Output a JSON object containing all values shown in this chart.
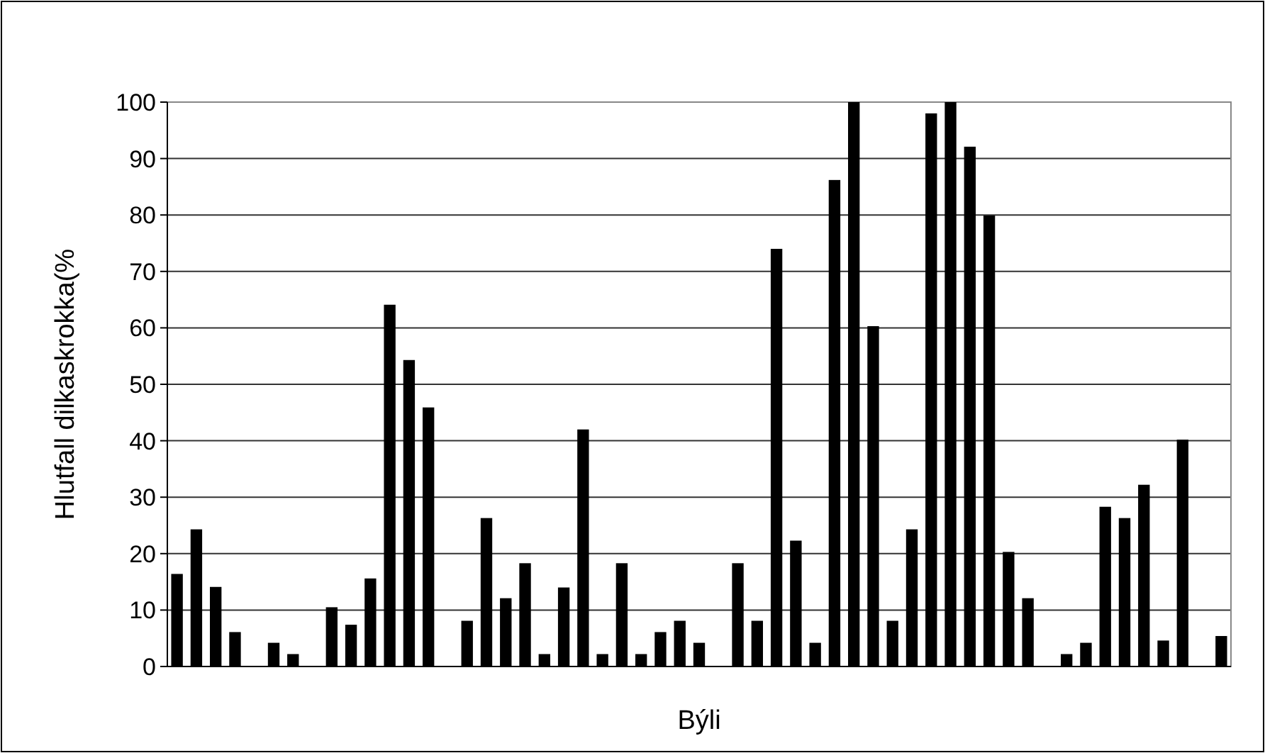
{
  "chart_data": {
    "type": "bar",
    "xlabel": "Býli",
    "ylabel": "Hlutfall dilkaskrokka(%",
    "categories": [
      null,
      null,
      null,
      null,
      null,
      null,
      null,
      null,
      null,
      null,
      null,
      null,
      null,
      null,
      null,
      null,
      null,
      null,
      null,
      null,
      null,
      null,
      null,
      null,
      null,
      null,
      null,
      null,
      null,
      null,
      null,
      null,
      null,
      null,
      null,
      null,
      null,
      null,
      null,
      null,
      null,
      null,
      null,
      null,
      null,
      null,
      null,
      null,
      null,
      null,
      null,
      null,
      null,
      null,
      null
    ],
    "values": [
      16.4,
      24.3,
      14.1,
      6.1,
      null,
      4.2,
      2.2,
      null,
      10.5,
      7.4,
      15.6,
      64.1,
      54.3,
      45.9,
      null,
      8.1,
      26.3,
      12.1,
      18.3,
      2.2,
      14,
      42,
      2.2,
      18.3,
      2.2,
      6.1,
      8.1,
      4.2,
      null,
      18.3,
      8.1,
      74,
      22.3,
      4.2,
      86.2,
      100,
      60.3,
      8.1,
      24.3,
      98,
      100,
      92.1,
      79.9,
      20.3,
      12.1,
      null,
      2.2,
      4.2,
      28.3,
      26.3,
      32.2,
      4.6,
      40.2,
      null,
      5.4
    ],
    "color": "#000000",
    "ylim": [
      0,
      100
    ],
    "yticks": [
      0,
      10,
      20,
      30,
      40,
      50,
      60,
      70,
      80,
      90,
      100
    ],
    "grid": "y"
  }
}
